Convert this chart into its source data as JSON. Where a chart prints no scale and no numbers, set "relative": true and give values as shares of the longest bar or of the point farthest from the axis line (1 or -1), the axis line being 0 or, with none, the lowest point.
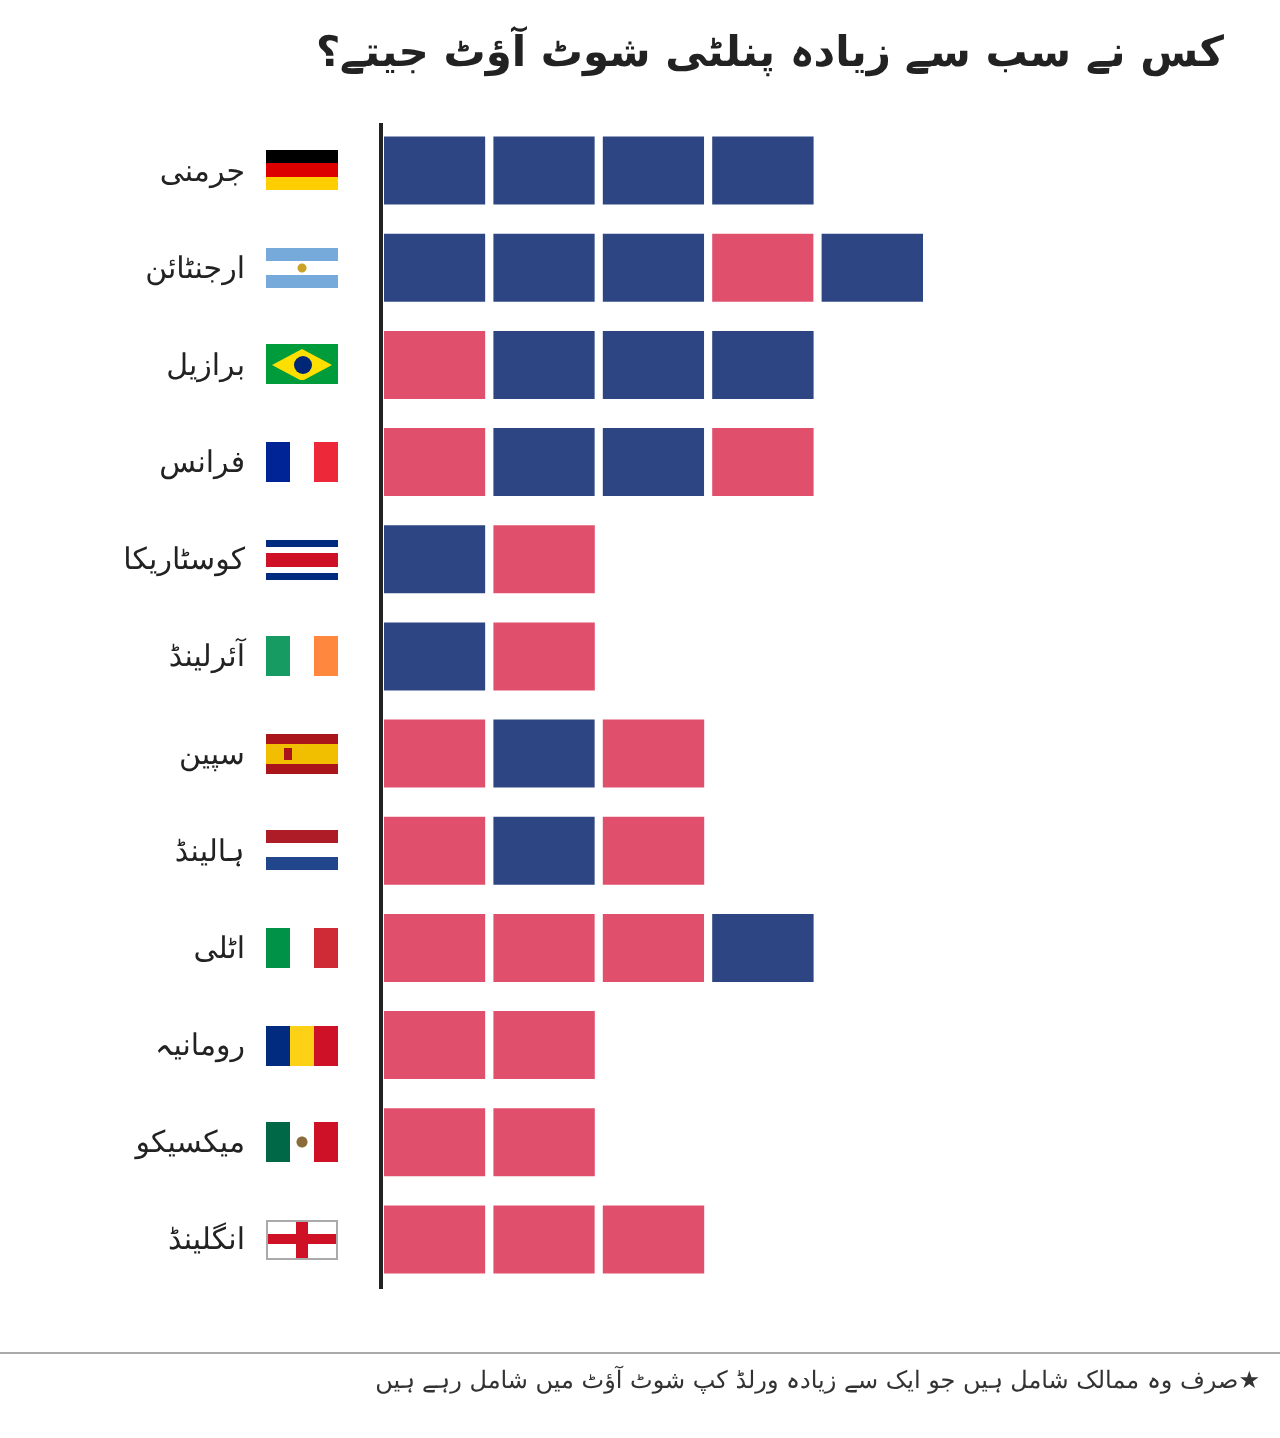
{
  "chart_data": {
    "type": "bar",
    "orientation": "horizontal",
    "stacked": true,
    "relative": true,
    "title": "کس نے سب سے زیادہ پنلٹی شوٹ آؤٹ جیتے؟",
    "categories": [
      "جرمنی",
      "ارجنٹائن",
      "برازیل",
      "فرانس",
      "کوسٹاریکا",
      "آئرلینڈ",
      "سپین",
      "ہالینڈ",
      "اٹلی",
      "رومانیہ",
      "میکسیکو",
      "انگلینڈ"
    ],
    "series": [
      {
        "values": [
          0.2,
          0.2,
          0.2,
          0.2,
          0.2,
          0.2,
          0.2,
          0.2,
          0.2,
          0.2,
          0.2,
          0.2
        ],
        "colors": [
          "#2d4683",
          "#2d4683",
          "#e0506c",
          "#e0506c",
          "#2d4683",
          "#2d4683",
          "#e0506c",
          "#e0506c",
          "#e0506c",
          "#e0506c",
          "#e0506c",
          "#e0506c"
        ]
      },
      {
        "values": [
          0.2,
          0.2,
          0.2,
          0.2,
          0.2,
          0.2,
          0.2,
          0.2,
          0.2,
          0.2,
          0.2,
          0.2
        ],
        "colors": [
          "#2d4683",
          "#2d4683",
          "#2d4683",
          "#2d4683",
          "#e0506c",
          "#e0506c",
          "#2d4683",
          "#2d4683",
          "#e0506c",
          "#e0506c",
          "#e0506c",
          "#e0506c"
        ]
      },
      {
        "values": [
          0.2,
          0.2,
          0.2,
          0.2,
          null,
          null,
          0.2,
          0.2,
          0.2,
          null,
          null,
          0.2
        ],
        "colors": [
          "#2d4683",
          "#2d4683",
          "#2d4683",
          "#2d4683",
          null,
          null,
          "#e0506c",
          "#e0506c",
          "#e0506c",
          null,
          null,
          "#e0506c"
        ]
      },
      {
        "values": [
          0.2,
          0.2,
          0.2,
          0.2,
          null,
          null,
          null,
          null,
          0.2,
          null,
          null,
          null
        ],
        "colors": [
          "#2d4683",
          "#e0506c",
          "#2d4683",
          "#e0506c",
          null,
          null,
          null,
          null,
          "#2d4683",
          null,
          null,
          null
        ]
      },
      {
        "values": [
          null,
          0.2,
          null,
          null,
          null,
          null,
          null,
          null,
          null,
          null,
          null,
          null
        ],
        "colors": [
          null,
          "#2d4683",
          null,
          null,
          null,
          null,
          null,
          null,
          null,
          null,
          null,
          null
        ]
      }
    ],
    "annotations": [
      "★صرف وہ ممالک شامل ہیں جو ایک سے زیادہ ورلڈ کپ شوٹ آؤٹ میں شامل رہے ہیں"
    ]
  }
}
